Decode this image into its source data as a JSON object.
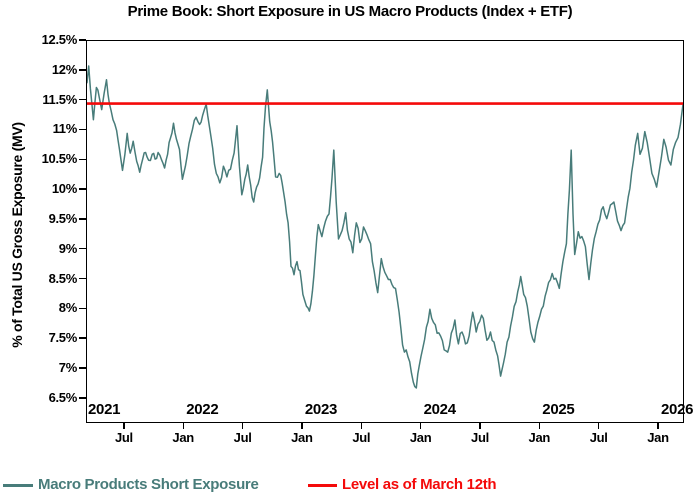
{
  "title": "Prime Book: Short Exposure in US Macro Products (Index + ETF)",
  "y_axis": {
    "label": "% of Total US Gross Exposure (MV)",
    "ticks": [
      {
        "v": 12.5,
        "label": "12.5%"
      },
      {
        "v": 12.0,
        "label": "12%"
      },
      {
        "v": 11.5,
        "label": "11.5%"
      },
      {
        "v": 11.0,
        "label": "11%"
      },
      {
        "v": 10.5,
        "label": "10.5%"
      },
      {
        "v": 10.0,
        "label": "10%"
      },
      {
        "v": 9.5,
        "label": "9.5%"
      },
      {
        "v": 9.0,
        "label": "9%"
      },
      {
        "v": 8.5,
        "label": "8.5%"
      },
      {
        "v": 8.0,
        "label": "8%"
      },
      {
        "v": 7.5,
        "label": "7.5%"
      },
      {
        "v": 7.0,
        "label": "7%"
      },
      {
        "v": 6.5,
        "label": "6.5%"
      }
    ]
  },
  "x_axis": {
    "year_labels": [
      {
        "t": 2021,
        "label": "2021"
      },
      {
        "t": 2022,
        "label": "2022"
      },
      {
        "t": 2023,
        "label": "2023"
      },
      {
        "t": 2024,
        "label": "2024"
      },
      {
        "t": 2025,
        "label": "2025"
      },
      {
        "t": 2026,
        "label": "2026"
      }
    ],
    "minor_ticks": [
      {
        "t": 2021.5,
        "label": "Jul"
      },
      {
        "t": 2022.0,
        "label": "Jan"
      },
      {
        "t": 2022.5,
        "label": "Jul"
      },
      {
        "t": 2023.0,
        "label": "Jan"
      },
      {
        "t": 2023.5,
        "label": "Jul"
      },
      {
        "t": 2024.0,
        "label": "Jan"
      },
      {
        "t": 2024.5,
        "label": "Jul"
      },
      {
        "t": 2025.0,
        "label": "Jan"
      },
      {
        "t": 2025.5,
        "label": "Jul"
      },
      {
        "t": 2026.0,
        "label": "Jan"
      }
    ]
  },
  "legend": {
    "series_label": "Macro Products Short Exposure",
    "level_label": "Level as of March 12th"
  },
  "colors": {
    "series": "#487c7a",
    "level_line": "#f40a0a",
    "axis": "#000000"
  },
  "chart_data": {
    "type": "line",
    "title": "Prime Book: Short Exposure in US Macro Products (Index + ETF)",
    "xlabel": "",
    "ylabel": "% of Total US Gross Exposure (MV)",
    "xlim": [
      2021.181,
      2026.202
    ],
    "ylim": [
      6.11,
      12.5
    ],
    "grid": false,
    "legend_position": "bottom",
    "level_line": {
      "name": "Level as of March 12th",
      "value": 11.45,
      "color": "#f40a0a"
    },
    "series": [
      {
        "name": "Macro Products Short Exposure",
        "color": "#487c7a",
        "units": "percent of total US gross exposure (MV)",
        "points": [
          [
            2021.181,
            11.8
          ],
          [
            2021.195,
            12.08
          ],
          [
            2021.21,
            11.7
          ],
          [
            2021.235,
            11.18
          ],
          [
            2021.26,
            11.72
          ],
          [
            2021.285,
            11.55
          ],
          [
            2021.305,
            11.35
          ],
          [
            2021.325,
            11.62
          ],
          [
            2021.345,
            11.85
          ],
          [
            2021.37,
            11.45
          ],
          [
            2021.4,
            11.18
          ],
          [
            2021.43,
            11.0
          ],
          [
            2021.455,
            10.68
          ],
          [
            2021.48,
            10.33
          ],
          [
            2021.5,
            10.6
          ],
          [
            2021.52,
            10.95
          ],
          [
            2021.545,
            10.62
          ],
          [
            2021.57,
            10.82
          ],
          [
            2021.6,
            10.48
          ],
          [
            2021.625,
            10.3
          ],
          [
            2021.65,
            10.52
          ],
          [
            2021.675,
            10.63
          ],
          [
            2021.7,
            10.5
          ],
          [
            2021.73,
            10.6
          ],
          [
            2021.755,
            10.52
          ],
          [
            2021.78,
            10.63
          ],
          [
            2021.81,
            10.5
          ],
          [
            2021.835,
            10.37
          ],
          [
            2021.86,
            10.6
          ],
          [
            2021.885,
            10.88
          ],
          [
            2021.91,
            11.12
          ],
          [
            2021.935,
            10.85
          ],
          [
            2021.96,
            10.68
          ],
          [
            2021.985,
            10.18
          ],
          [
            2022.01,
            10.4
          ],
          [
            2022.04,
            10.78
          ],
          [
            2022.07,
            11.02
          ],
          [
            2022.1,
            11.22
          ],
          [
            2022.13,
            11.1
          ],
          [
            2022.155,
            11.25
          ],
          [
            2022.185,
            11.44
          ],
          [
            2022.21,
            11.1
          ],
          [
            2022.24,
            10.7
          ],
          [
            2022.27,
            10.28
          ],
          [
            2022.3,
            10.12
          ],
          [
            2022.33,
            10.4
          ],
          [
            2022.36,
            10.22
          ],
          [
            2022.39,
            10.35
          ],
          [
            2022.42,
            10.62
          ],
          [
            2022.445,
            11.08
          ],
          [
            2022.465,
            10.4
          ],
          [
            2022.485,
            9.92
          ],
          [
            2022.51,
            10.18
          ],
          [
            2022.535,
            10.42
          ],
          [
            2022.56,
            10.08
          ],
          [
            2022.585,
            9.8
          ],
          [
            2022.61,
            10.05
          ],
          [
            2022.635,
            10.2
          ],
          [
            2022.66,
            10.55
          ],
          [
            2022.685,
            11.4
          ],
          [
            2022.7,
            11.68
          ],
          [
            2022.72,
            11.15
          ],
          [
            2022.745,
            10.8
          ],
          [
            2022.77,
            10.22
          ],
          [
            2022.8,
            10.28
          ],
          [
            2022.825,
            10.12
          ],
          [
            2022.85,
            9.8
          ],
          [
            2022.875,
            9.45
          ],
          [
            2022.9,
            8.72
          ],
          [
            2022.925,
            8.58
          ],
          [
            2022.95,
            8.8
          ],
          [
            2022.975,
            8.65
          ],
          [
            2023.0,
            8.25
          ],
          [
            2023.03,
            8.05
          ],
          [
            2023.055,
            7.97
          ],
          [
            2023.08,
            8.3
          ],
          [
            2023.105,
            8.9
          ],
          [
            2023.13,
            9.42
          ],
          [
            2023.16,
            9.22
          ],
          [
            2023.19,
            9.48
          ],
          [
            2023.22,
            9.6
          ],
          [
            2023.245,
            10.2
          ],
          [
            2023.26,
            10.67
          ],
          [
            2023.28,
            9.8
          ],
          [
            2023.3,
            9.18
          ],
          [
            2023.33,
            9.32
          ],
          [
            2023.36,
            9.62
          ],
          [
            2023.39,
            9.18
          ],
          [
            2023.42,
            8.95
          ],
          [
            2023.45,
            9.45
          ],
          [
            2023.48,
            9.12
          ],
          [
            2023.51,
            9.38
          ],
          [
            2023.54,
            9.25
          ],
          [
            2023.57,
            9.1
          ],
          [
            2023.6,
            8.65
          ],
          [
            2023.63,
            8.28
          ],
          [
            2023.66,
            8.85
          ],
          [
            2023.69,
            8.62
          ],
          [
            2023.72,
            8.5
          ],
          [
            2023.75,
            8.42
          ],
          [
            2023.78,
            8.35
          ],
          [
            2023.81,
            7.95
          ],
          [
            2023.84,
            7.4
          ],
          [
            2023.87,
            7.32
          ],
          [
            2023.9,
            7.12
          ],
          [
            2023.93,
            6.78
          ],
          [
            2023.955,
            6.68
          ],
          [
            2023.98,
            7.05
          ],
          [
            2024.01,
            7.35
          ],
          [
            2024.04,
            7.7
          ],
          [
            2024.07,
            8.0
          ],
          [
            2024.1,
            7.78
          ],
          [
            2024.13,
            7.6
          ],
          [
            2024.16,
            7.55
          ],
          [
            2024.19,
            7.32
          ],
          [
            2024.22,
            7.28
          ],
          [
            2024.25,
            7.6
          ],
          [
            2024.28,
            7.82
          ],
          [
            2024.31,
            7.42
          ],
          [
            2024.34,
            7.62
          ],
          [
            2024.37,
            7.42
          ],
          [
            2024.4,
            7.55
          ],
          [
            2024.43,
            7.95
          ],
          [
            2024.46,
            7.62
          ],
          [
            2024.49,
            7.8
          ],
          [
            2024.52,
            7.85
          ],
          [
            2024.55,
            7.48
          ],
          [
            2024.58,
            7.62
          ],
          [
            2024.61,
            7.45
          ],
          [
            2024.64,
            7.22
          ],
          [
            2024.665,
            6.88
          ],
          [
            2024.69,
            7.1
          ],
          [
            2024.72,
            7.45
          ],
          [
            2024.75,
            7.72
          ],
          [
            2024.78,
            8.05
          ],
          [
            2024.81,
            8.3
          ],
          [
            2024.835,
            8.55
          ],
          [
            2024.86,
            8.25
          ],
          [
            2024.89,
            8.05
          ],
          [
            2024.92,
            7.62
          ],
          [
            2024.95,
            7.45
          ],
          [
            2024.98,
            7.78
          ],
          [
            2025.01,
            8.0
          ],
          [
            2025.04,
            8.22
          ],
          [
            2025.07,
            8.45
          ],
          [
            2025.1,
            8.6
          ],
          [
            2025.13,
            8.52
          ],
          [
            2025.16,
            8.35
          ],
          [
            2025.19,
            8.8
          ],
          [
            2025.22,
            9.1
          ],
          [
            2025.245,
            10.0
          ],
          [
            2025.26,
            10.67
          ],
          [
            2025.275,
            9.6
          ],
          [
            2025.29,
            8.92
          ],
          [
            2025.32,
            9.3
          ],
          [
            2025.35,
            9.22
          ],
          [
            2025.38,
            9.05
          ],
          [
            2025.41,
            8.5
          ],
          [
            2025.44,
            9.0
          ],
          [
            2025.47,
            9.3
          ],
          [
            2025.5,
            9.5
          ],
          [
            2025.53,
            9.72
          ],
          [
            2025.56,
            9.52
          ],
          [
            2025.59,
            9.75
          ],
          [
            2025.62,
            9.8
          ],
          [
            2025.65,
            9.48
          ],
          [
            2025.68,
            9.32
          ],
          [
            2025.71,
            9.45
          ],
          [
            2025.74,
            9.88
          ],
          [
            2025.77,
            10.3
          ],
          [
            2025.8,
            10.75
          ],
          [
            2025.82,
            10.95
          ],
          [
            2025.84,
            10.6
          ],
          [
            2025.86,
            10.7
          ],
          [
            2025.88,
            10.98
          ],
          [
            2025.9,
            10.8
          ],
          [
            2025.92,
            10.55
          ],
          [
            2025.94,
            10.28
          ],
          [
            2025.96,
            10.18
          ],
          [
            2025.98,
            10.05
          ],
          [
            2026.0,
            10.3
          ],
          [
            2026.02,
            10.55
          ],
          [
            2026.04,
            10.85
          ],
          [
            2026.06,
            10.72
          ],
          [
            2026.08,
            10.5
          ],
          [
            2026.1,
            10.42
          ],
          [
            2026.12,
            10.68
          ],
          [
            2026.14,
            10.8
          ],
          [
            2026.16,
            10.88
          ],
          [
            2026.18,
            11.1
          ],
          [
            2026.202,
            11.44
          ]
        ]
      }
    ]
  }
}
